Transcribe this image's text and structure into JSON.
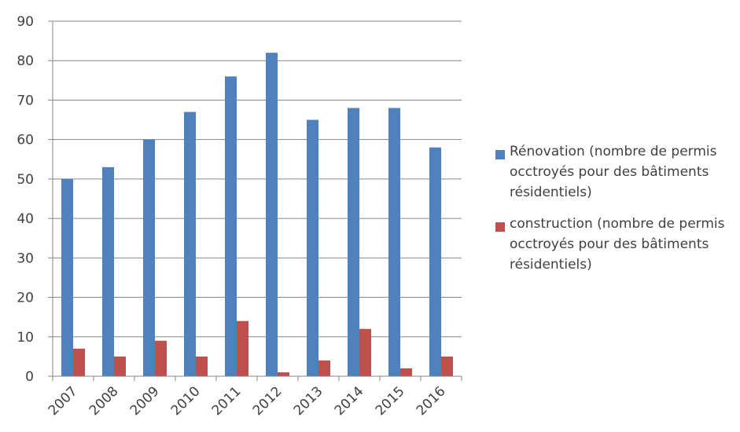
{
  "chart_data": {
    "type": "bar",
    "categories": [
      "2007",
      "2008",
      "2009",
      "2010",
      "2011",
      "2012",
      "2013",
      "2014",
      "2015",
      "2016"
    ],
    "series": [
      {
        "name": "Rénovation (nombre de permis occtroyés pour des bâtiments résidentiels)",
        "color": "#4f81bd",
        "values": [
          50,
          53,
          60,
          67,
          76,
          82,
          65,
          68,
          68,
          58
        ]
      },
      {
        "name": "construction (nombre de permis occtroyés pour des bâtiments résidentiels)",
        "color": "#c0504d",
        "values": [
          7,
          5,
          9,
          5,
          14,
          1,
          4,
          12,
          2,
          5
        ]
      }
    ],
    "y_ticks": [
      "0",
      "10",
      "20",
      "30",
      "40",
      "50",
      "60",
      "70",
      "80",
      "90"
    ],
    "ylim": [
      0,
      90
    ],
    "grid": true,
    "legend_position": "right"
  }
}
